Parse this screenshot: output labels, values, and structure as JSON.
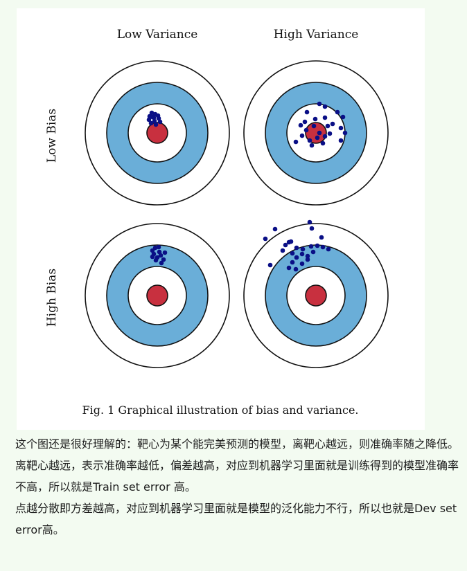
{
  "figure": {
    "col_labels": [
      "Low Variance",
      "High Variance"
    ],
    "row_labels": [
      "Low Bias",
      "High Bias"
    ],
    "caption": "Fig. 1 Graphical illustration of bias and variance.",
    "colors": {
      "ring_outer": "#ffffff",
      "ring_blue": "#6aaed8",
      "ring_inner": "#ffffff",
      "bullseye": "#c8303f",
      "dot": "#0a0f86"
    },
    "targets": [
      {
        "name": "low-bias-low-variance",
        "bias": "Low Bias",
        "variance": "Low Variance"
      },
      {
        "name": "low-bias-high-variance",
        "bias": "Low Bias",
        "variance": "High Variance"
      },
      {
        "name": "high-bias-low-variance",
        "bias": "High Bias",
        "variance": "Low Variance"
      },
      {
        "name": "high-bias-high-variance",
        "bias": "High Bias",
        "variance": "High Variance"
      }
    ]
  },
  "text": {
    "p1": "这个图还是很好理解的：靶心为某个能完美预测的模型，离靶心越远，则准确率随之降低。",
    "p2": "离靶心越远，表示准确率越低，偏差越高，对应到机器学习里面就是训练得到的模型准确率不高，所以就是Train set error 高。",
    "p3": "点越分散即方差越高，对应到机器学习里面就是模型的泛化能力不行，所以也就是Dev set error高。"
  }
}
